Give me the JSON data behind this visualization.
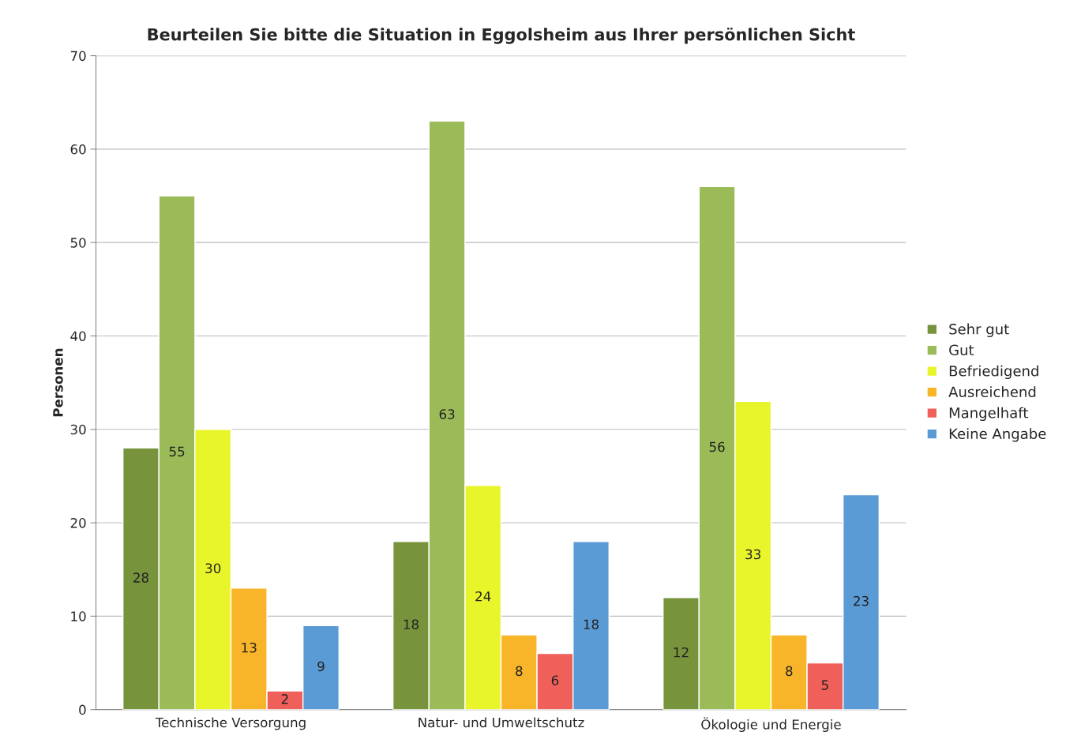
{
  "chart_data": {
    "type": "bar",
    "title": "Beurteilen Sie bitte die Situation in Eggolsheim aus Ihrer persönlichen Sicht",
    "ylabel": "Personen",
    "categories": [
      "Technische Versorgung",
      "Natur- und Umweltschutz",
      "Ökologie und Energie"
    ],
    "series": [
      {
        "name": "Sehr gut",
        "color": "#77933c",
        "values": [
          28,
          18,
          12
        ]
      },
      {
        "name": "Gut",
        "color": "#9bbb59",
        "values": [
          55,
          63,
          56
        ]
      },
      {
        "name": "Befriedigend",
        "color": "#e8f52a",
        "values": [
          30,
          24,
          33
        ]
      },
      {
        "name": "Ausreichend",
        "color": "#f9b52a",
        "values": [
          13,
          8,
          8
        ]
      },
      {
        "name": "Mangelhaft",
        "color": "#f0605a",
        "values": [
          2,
          6,
          5
        ]
      },
      {
        "name": "Keine Angabe",
        "color": "#5b9bd5",
        "values": [
          9,
          18,
          23
        ]
      }
    ],
    "ylim": [
      0,
      70
    ],
    "yticks": [
      0,
      10,
      20,
      30,
      40,
      50,
      60,
      70
    ],
    "grid": "y",
    "legend": "right",
    "data_labels": true
  }
}
